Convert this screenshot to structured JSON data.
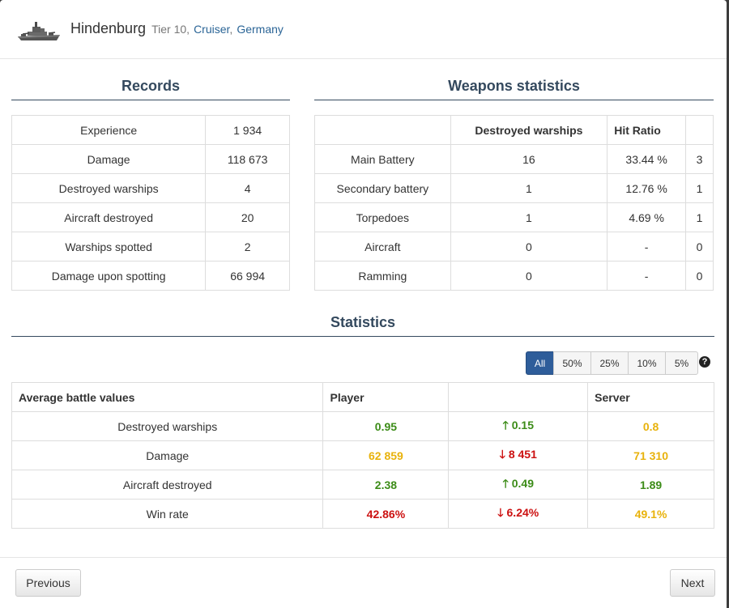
{
  "ship": {
    "name": "Hindenburg",
    "tier": "Tier 10,",
    "class": "Cruiser",
    "comma": ",",
    "nation": "Germany"
  },
  "records": {
    "title": "Records",
    "rows": [
      {
        "label": "Experience",
        "value": "1 934"
      },
      {
        "label": "Damage",
        "value": "118 673"
      },
      {
        "label": "Destroyed warships",
        "value": "4"
      },
      {
        "label": "Aircraft destroyed",
        "value": "20"
      },
      {
        "label": "Warships spotted",
        "value": "2"
      },
      {
        "label": "Damage upon spotting",
        "value": "66 994"
      }
    ]
  },
  "weapons": {
    "title": "Weapons statistics",
    "headers": [
      "",
      "Destroyed warships",
      "Hit Ratio",
      ""
    ],
    "rows": [
      {
        "name": "Main Battery",
        "destroyed": "16",
        "hit": "33.44 %",
        "extra": "3"
      },
      {
        "name": "Secondary battery",
        "destroyed": "1",
        "hit": "12.76 %",
        "extra": "1"
      },
      {
        "name": "Torpedoes",
        "destroyed": "1",
        "hit": "4.69 %",
        "extra": "1"
      },
      {
        "name": "Aircraft",
        "destroyed": "0",
        "hit": "-",
        "extra": "0"
      },
      {
        "name": "Ramming",
        "destroyed": "0",
        "hit": "-",
        "extra": "0"
      }
    ]
  },
  "statistics": {
    "title": "Statistics",
    "filters": [
      "All",
      "50%",
      "25%",
      "10%",
      "5%"
    ],
    "active_filter": "All",
    "headers": [
      "Average battle values",
      "Player",
      "",
      "Server"
    ],
    "rows": [
      {
        "label": "Destroyed warships",
        "player": "0.95",
        "player_color": "green",
        "diff_arrow": "up",
        "diff": "0.15",
        "server": "0.8",
        "server_color": "yellow"
      },
      {
        "label": "Damage",
        "player": "62 859",
        "player_color": "yellow",
        "diff_arrow": "down",
        "diff": "8 451",
        "server": "71 310",
        "server_color": "yellow"
      },
      {
        "label": "Aircraft destroyed",
        "player": "2.38",
        "player_color": "green",
        "diff_arrow": "up",
        "diff": "0.49",
        "server": "1.89",
        "server_color": "green"
      },
      {
        "label": "Win rate",
        "player": "42.86%",
        "player_color": "red",
        "diff_arrow": "down",
        "diff": "6.24%",
        "server": "49.1%",
        "server_color": "yellow"
      }
    ]
  },
  "footer": {
    "previous": "Previous",
    "next": "Next"
  },
  "icons": {
    "help": "?",
    "arrow_up": "🡑",
    "arrow_down": "🡓"
  }
}
